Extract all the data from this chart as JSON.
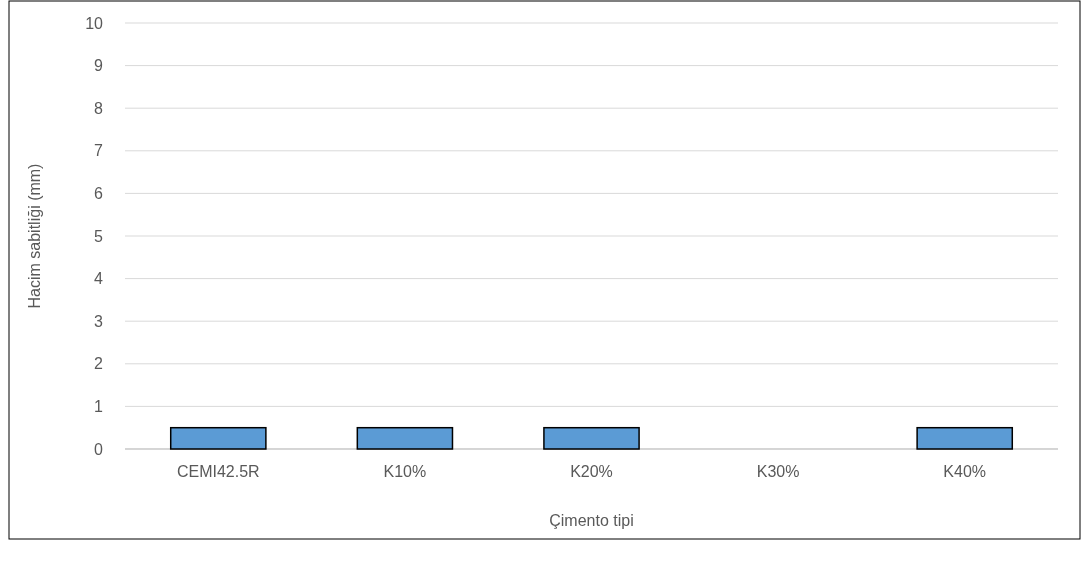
{
  "chart_data": {
    "type": "bar",
    "xlabel": "Çimento tipi",
    "ylabel": "Hacim sabitliği (mm)",
    "categories": [
      "CEMI42.5R",
      "K10%",
      "K20%",
      "K30%",
      "K40%"
    ],
    "values": [
      0.5,
      0.5,
      0.5,
      0,
      0.5
    ],
    "color": "#5b9bd5",
    "ylim": [
      0,
      10
    ],
    "yticks": [
      0,
      1,
      2,
      3,
      4,
      5,
      6,
      7,
      8,
      9,
      10
    ],
    "grid": "y"
  }
}
